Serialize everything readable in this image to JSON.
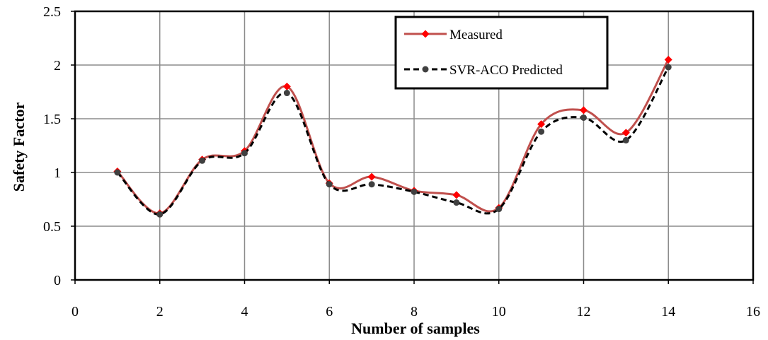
{
  "chart_data": {
    "type": "line",
    "xlabel": "Number of samples",
    "ylabel": "Safety Factor",
    "xlim": [
      0,
      16
    ],
    "ylim": [
      0,
      2.5
    ],
    "xticks": [
      "0",
      "2",
      "4",
      "6",
      "8",
      "10",
      "12",
      "14",
      "16"
    ],
    "yticks": [
      "0",
      "0.5",
      "1",
      "1.5",
      "2",
      "2.5"
    ],
    "grid": true,
    "legend_position": "top-right",
    "series": [
      {
        "name": "Measured",
        "color": "#c0504d",
        "marker_color": "#ff0000",
        "marker": "diamond",
        "line_style": "solid",
        "x": [
          1,
          2,
          3,
          4,
          5,
          6,
          7,
          8,
          9,
          10,
          11,
          12,
          13,
          14
        ],
        "y": [
          1.01,
          0.62,
          1.12,
          1.2,
          1.8,
          0.9,
          0.96,
          0.83,
          0.79,
          0.67,
          1.45,
          1.58,
          1.37,
          2.05
        ]
      },
      {
        "name": "SVR-ACO Predicted",
        "color": "#000000",
        "marker_color": "#404040",
        "marker": "circle",
        "line_style": "dashed",
        "x": [
          1,
          2,
          3,
          4,
          5,
          6,
          7,
          8,
          9,
          10,
          11,
          12,
          13,
          14
        ],
        "y": [
          1.0,
          0.61,
          1.11,
          1.18,
          1.74,
          0.89,
          0.89,
          0.82,
          0.72,
          0.66,
          1.38,
          1.51,
          1.3,
          1.98
        ]
      }
    ]
  }
}
